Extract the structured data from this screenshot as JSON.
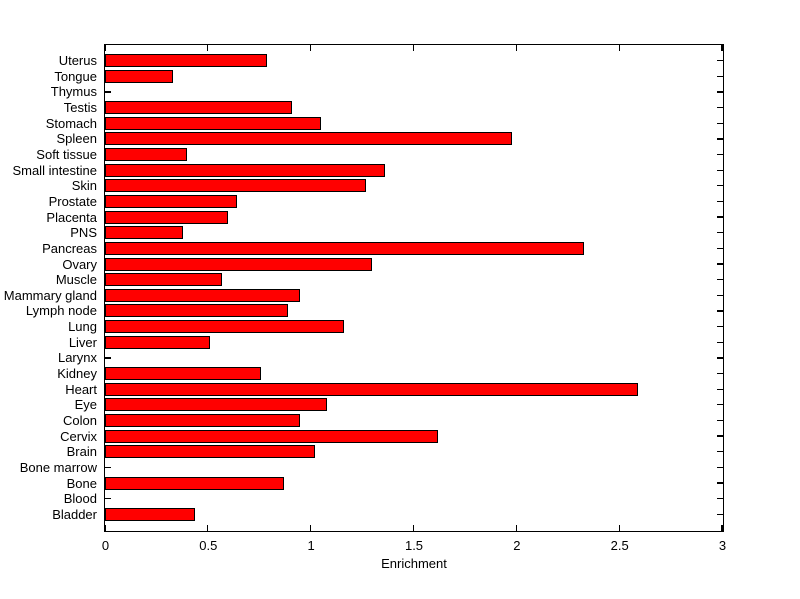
{
  "chart_data": {
    "type": "bar",
    "orientation": "horizontal",
    "title": "",
    "xlabel": "Enrichment",
    "ylabel": "",
    "xlim": [
      0,
      3
    ],
    "xticks": [
      0,
      0.5,
      1,
      1.5,
      2,
      2.5,
      3
    ],
    "xtick_labels": [
      "0",
      "0.5",
      "1",
      "1.5",
      "2",
      "2.5",
      "3"
    ],
    "grid": false,
    "legend_position": "none",
    "bar_color": "#ff0000",
    "bar_edge_color": "#000000",
    "category_order": "top-to-bottom",
    "categories": [
      "Uterus",
      "Tongue",
      "Thymus",
      "Testis",
      "Stomach",
      "Spleen",
      "Soft tissue",
      "Small intestine",
      "Skin",
      "Prostate",
      "Placenta",
      "PNS",
      "Pancreas",
      "Ovary",
      "Muscle",
      "Mammary gland",
      "Lymph node",
      "Lung",
      "Liver",
      "Larynx",
      "Kidney",
      "Heart",
      "Eye",
      "Colon",
      "Cervix",
      "Brain",
      "Bone marrow",
      "Bone",
      "Blood",
      "Bladder"
    ],
    "values": [
      0.79,
      0.33,
      0,
      0.91,
      1.05,
      1.98,
      0.4,
      1.36,
      1.27,
      0.64,
      0.6,
      0.38,
      2.33,
      1.3,
      0.57,
      0.95,
      0.89,
      1.16,
      0.51,
      0,
      0.76,
      2.59,
      1.08,
      0.95,
      1.62,
      1.02,
      0,
      0.87,
      0,
      0.44
    ]
  }
}
